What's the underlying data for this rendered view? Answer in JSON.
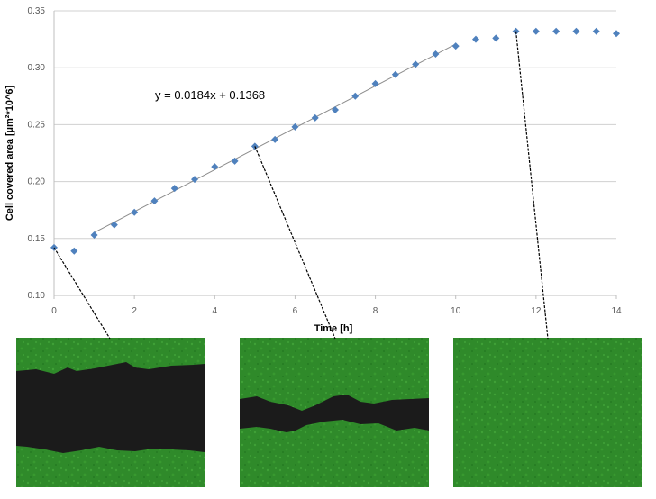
{
  "chart_data": {
    "type": "scatter",
    "xlabel": "Time [h]",
    "ylabel": "Cell covered area [µm²*10^6]",
    "xlim": [
      0,
      14
    ],
    "ylim": [
      0.1,
      0.35
    ],
    "xticks": [
      "0",
      "2",
      "4",
      "6",
      "8",
      "10",
      "12",
      "14"
    ],
    "yticks": [
      "0.10",
      "0.15",
      "0.20",
      "0.25",
      "0.30",
      "0.35"
    ],
    "grid": "horizontal",
    "marker_color": "#4f81bd",
    "series": [
      {
        "x": [
          0,
          0.5,
          1,
          1.5,
          2,
          2.5,
          3,
          3.5,
          4,
          4.5,
          5,
          5.5,
          6,
          6.5,
          7,
          7.5,
          8,
          8.5,
          9,
          9.5,
          10,
          10.5,
          11,
          11.5,
          12,
          12.5,
          13,
          13.5,
          14
        ],
        "y": [
          0.142,
          0.139,
          0.153,
          0.162,
          0.173,
          0.183,
          0.194,
          0.202,
          0.213,
          0.218,
          0.231,
          0.237,
          0.248,
          0.256,
          0.263,
          0.275,
          0.286,
          0.294,
          0.303,
          0.312,
          0.319,
          0.325,
          0.326,
          0.332,
          0.332,
          0.332,
          0.332,
          0.332,
          0.33
        ]
      }
    ],
    "trendline": {
      "equation": "y = 0.0184x + 0.1368",
      "slope": 0.0184,
      "intercept": 0.1368,
      "x_range": [
        1,
        10
      ]
    },
    "micrographs": [
      {
        "time": 0,
        "y": 0.142
      },
      {
        "time": 5,
        "y": 0.231
      },
      {
        "time": 11.5,
        "y": 0.332
      }
    ]
  }
}
